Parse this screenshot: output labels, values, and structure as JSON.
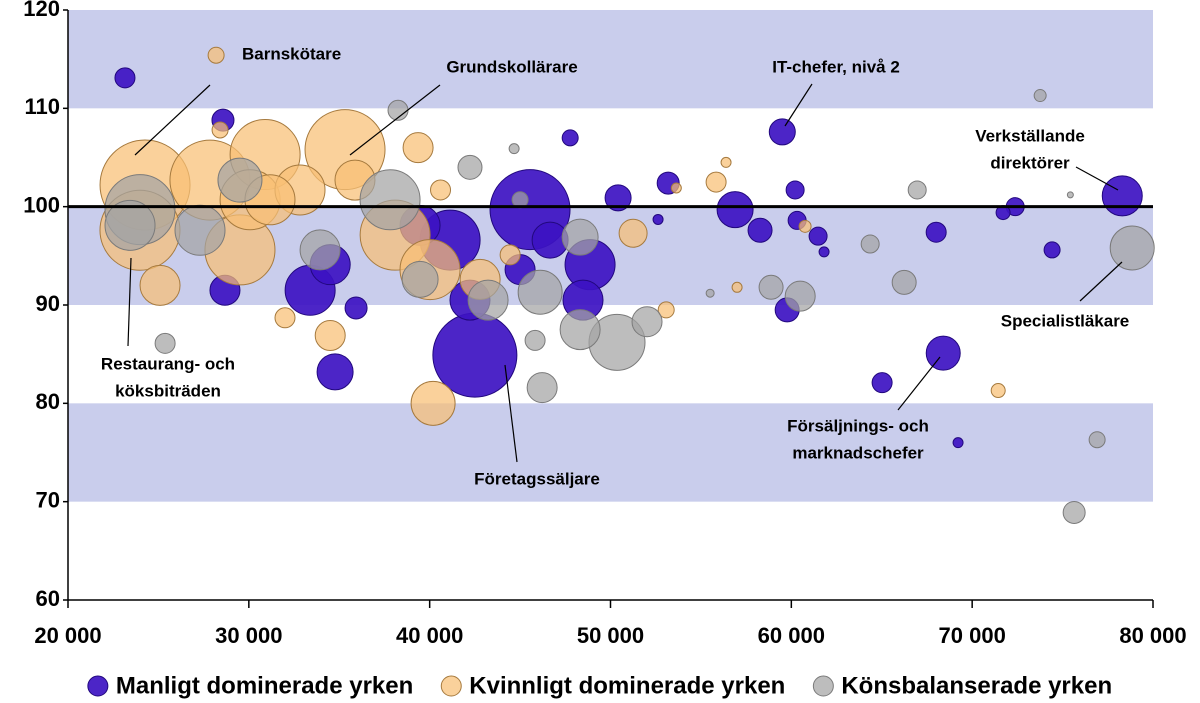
{
  "chart_data": {
    "type": "bubble",
    "xlim": [
      20000,
      80000
    ],
    "xticks": [
      {
        "value": 20000,
        "label": "20 000"
      },
      {
        "value": 30000,
        "label": "30 000"
      },
      {
        "value": 40000,
        "label": "40 000"
      },
      {
        "value": 50000,
        "label": "50 000"
      },
      {
        "value": 60000,
        "label": "60 000"
      },
      {
        "value": 70000,
        "label": "70 000"
      },
      {
        "value": 80000,
        "label": "80 000"
      }
    ],
    "ylim": [
      60,
      120
    ],
    "yticks": [
      60,
      70,
      80,
      90,
      100,
      110,
      120
    ],
    "bands": [
      [
        110,
        120
      ],
      [
        90,
        100
      ],
      [
        70,
        80
      ]
    ],
    "band_color": "#c9cdec",
    "reference_line": 100,
    "legend": "bottom",
    "annotations": [
      [
        "Barnskötare"
      ],
      [
        "Grundskollärare"
      ],
      [
        "Restaurang- och",
        "köksbiträden"
      ],
      [
        "IT-chefer, nivå 2"
      ],
      [
        "Verkställande",
        "direktörer"
      ],
      [
        "Specialistläkare"
      ],
      [
        "Försäljnings- och",
        "marknadschefer"
      ],
      [
        "Företagssäljare"
      ]
    ],
    "series": [
      {
        "name": "Manligt dominerade yrken",
        "color": "#3d12c2",
        "stroke": "#22087e",
        "x": [
          23150,
          28570,
          78300,
          59500,
          68400,
          42500,
          45550,
          48870,
          48480,
          50420,
          53190,
          56890,
          58270,
          60210,
          60320,
          59770,
          61480,
          68010,
          72380,
          74420,
          71710,
          65020,
          69220,
          47770,
          34770,
          35930,
          33390,
          34500,
          41130,
          42230,
          28680,
          39470,
          46660,
          45000,
          52630,
          61810
        ],
        "values": [
          113.1,
          108.8,
          101.1,
          107.6,
          85.1,
          84.9,
          99.7,
          94.1,
          90.5,
          100.9,
          102.4,
          99.7,
          97.6,
          101.7,
          98.6,
          89.5,
          97.0,
          97.4,
          100.0,
          95.6,
          99.4,
          82.1,
          76.0,
          107.0,
          83.2,
          89.7,
          91.5,
          94.1,
          96.6,
          90.5,
          91.5,
          98.1,
          96.6,
          93.6,
          98.7,
          95.4
        ],
        "sizes": [
          10,
          11,
          20,
          13,
          17,
          42,
          40,
          25,
          20,
          13,
          11,
          18,
          12,
          9,
          9,
          12,
          9,
          10,
          9,
          8,
          7,
          10,
          5,
          8,
          18,
          11,
          25,
          20,
          30,
          20,
          15,
          20,
          18,
          15,
          5,
          5
        ]
      },
      {
        "name": "Kvinnligt dominerade yrken",
        "color": "#f8bf74",
        "stroke": "#a67a3e",
        "x": [
          28190,
          35320,
          24260,
          23980,
          27850,
          30900,
          29510,
          30070,
          32830,
          25090,
          38090,
          40020,
          40190,
          34500,
          39360,
          42790,
          32000,
          51250,
          55840,
          56390,
          57000,
          71440,
          53080,
          60760,
          28410,
          35870,
          40600,
          44450,
          53640,
          31170
        ],
        "values": [
          115.4,
          105.8,
          102.2,
          97.6,
          102.7,
          105.3,
          95.6,
          100.7,
          101.7,
          92.0,
          97.1,
          93.6,
          80.0,
          86.9,
          106.0,
          92.6,
          88.7,
          97.3,
          102.5,
          104.5,
          91.8,
          81.3,
          89.5,
          98.0,
          107.8,
          102.7,
          101.7,
          95.1,
          101.9,
          100.7
        ],
        "sizes": [
          8,
          40,
          45,
          40,
          40,
          35,
          35,
          30,
          25,
          20,
          35,
          30,
          22,
          15,
          15,
          20,
          10,
          14,
          10,
          5,
          5,
          7,
          8,
          6,
          8,
          20,
          10,
          10,
          5,
          25
        ]
      },
      {
        "name": "Könsbalanserade yrken",
        "color": "#a4a4a4",
        "stroke": "#7a7a7a",
        "x": [
          78850,
          75640,
          76910,
          73760,
          75430,
          66960,
          66240,
          64360,
          60490,
          58880,
          55510,
          50360,
          48320,
          52020,
          48320,
          46110,
          46220,
          45830,
          43230,
          42230,
          44670,
          38250,
          23980,
          23430,
          27300,
          37810,
          29510,
          25370,
          39470,
          33940,
          45000
        ],
        "values": [
          95.8,
          68.9,
          76.3,
          111.3,
          101.2,
          101.7,
          92.3,
          96.2,
          90.9,
          91.8,
          91.2,
          86.2,
          87.5,
          88.3,
          96.9,
          91.3,
          81.6,
          86.4,
          90.5,
          104.0,
          105.9,
          109.8,
          99.7,
          98.1,
          97.6,
          100.7,
          102.7,
          86.1,
          92.6,
          95.6,
          100.7
        ],
        "sizes": [
          22,
          11,
          8,
          6,
          3,
          9,
          12,
          9,
          15,
          12,
          4,
          28,
          20,
          15,
          18,
          22,
          15,
          10,
          20,
          12,
          5,
          10,
          35,
          25,
          25,
          30,
          22,
          10,
          18,
          20,
          8
        ]
      }
    ]
  }
}
